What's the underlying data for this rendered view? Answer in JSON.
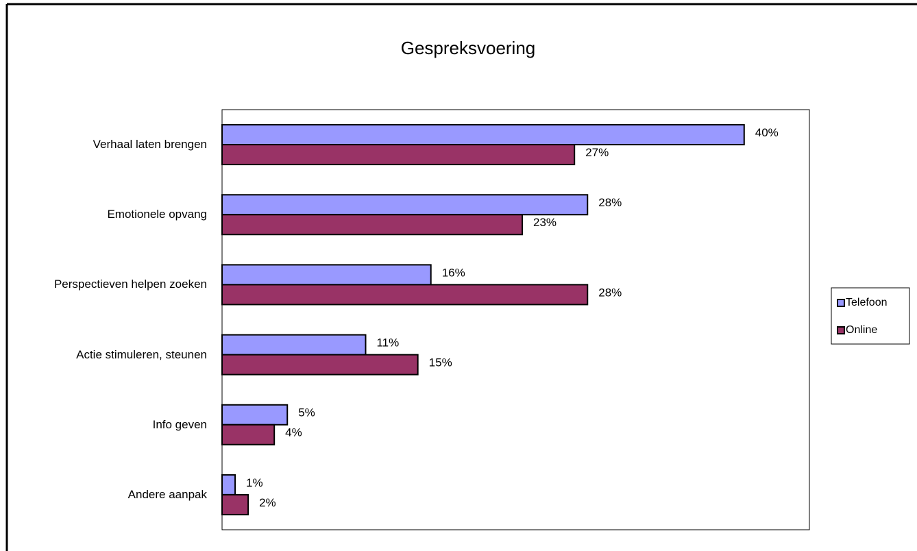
{
  "chart_data": {
    "type": "bar",
    "orientation": "horizontal",
    "title": "Gespreksvoering",
    "categories": [
      "Verhaal laten brengen",
      "Emotionele opvang",
      "Perspectieven helpen zoeken",
      "Actie stimuleren, steunen",
      "Info geven",
      "Andere aanpak"
    ],
    "series": [
      {
        "name": "Telefoon",
        "color": "#9999ff",
        "values": [
          40,
          28,
          16,
          11,
          5,
          1
        ],
        "value_labels": [
          "40%",
          "28%",
          "16%",
          "11%",
          "5%",
          "1%"
        ]
      },
      {
        "name": "Online",
        "color": "#993366",
        "values": [
          27,
          23,
          28,
          15,
          4,
          2
        ],
        "value_labels": [
          "27%",
          "23%",
          "28%",
          "15%",
          "4%",
          "2%"
        ]
      }
    ],
    "xlim": [
      0,
      45
    ],
    "legend": "right"
  }
}
